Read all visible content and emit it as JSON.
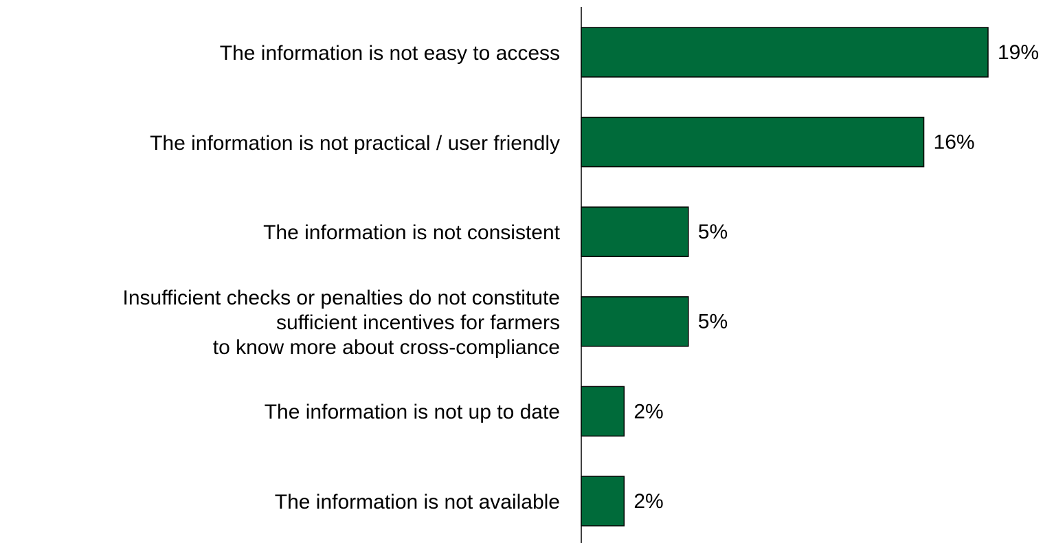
{
  "chart_data": {
    "type": "bar",
    "orientation": "horizontal",
    "categories": [
      "The information is not easy to access",
      "The information is not practical / user friendly",
      "The information is not consistent",
      "Insufficient checks or penalties do not constitute\nsufficient incentives for farmers\nto know more about cross-compliance",
      "The information is not up to date",
      "The information is not available"
    ],
    "values": [
      19,
      16,
      5,
      5,
      2,
      2
    ],
    "value_labels": [
      "19%",
      "16%",
      "5%",
      "5%",
      "2%",
      "2%"
    ],
    "color": "#006b3a"
  }
}
